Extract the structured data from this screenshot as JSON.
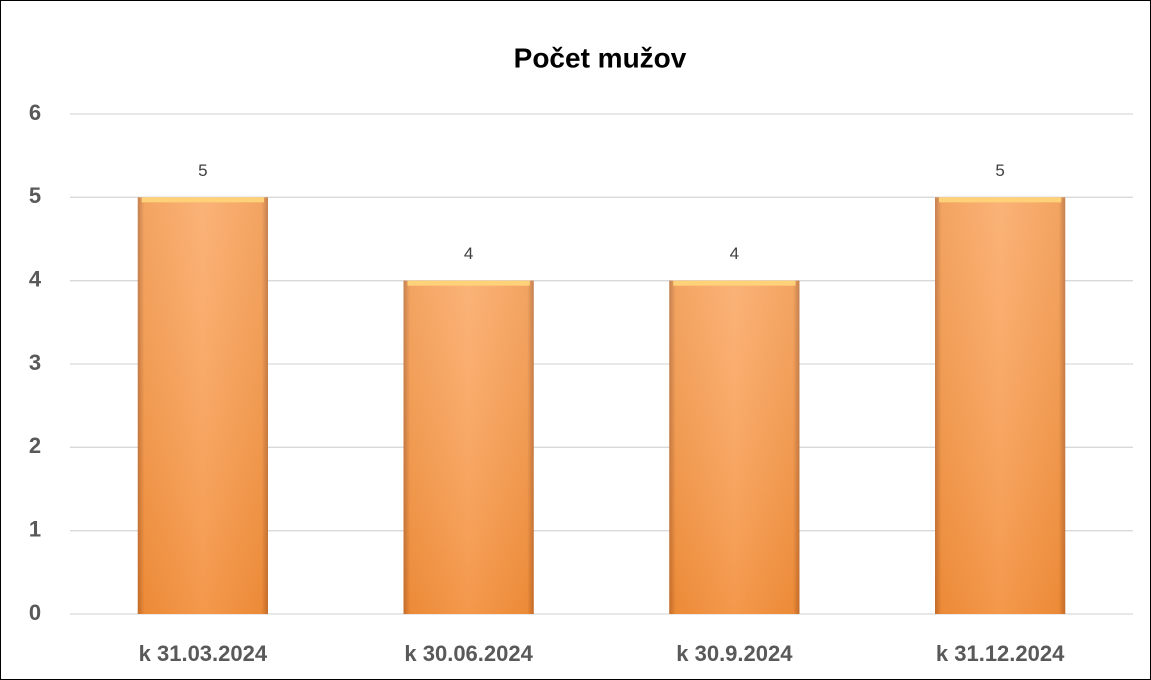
{
  "chart_data": {
    "type": "bar",
    "title": "Počet mužov",
    "categories": [
      "k 31.03.2024",
      "k 30.06.2024",
      "k 30.9.2024",
      "k 31.12.2024"
    ],
    "values": [
      5,
      4,
      4,
      5
    ],
    "color": "#f7963f",
    "ylim": [
      0,
      6
    ],
    "yticks": [
      0,
      1,
      2,
      3,
      4,
      5,
      6
    ],
    "grid": true
  }
}
